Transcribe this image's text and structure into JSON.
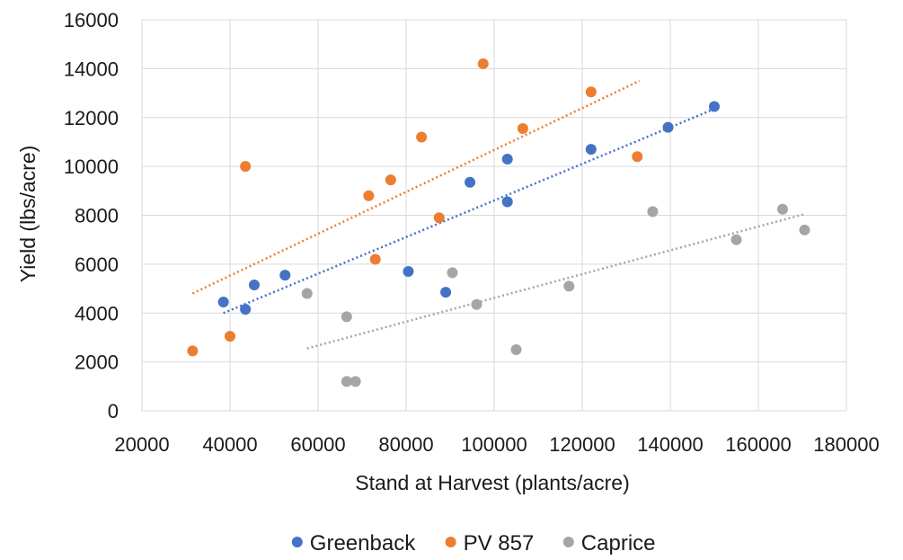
{
  "chart_data": {
    "type": "scatter",
    "title": "",
    "xlabel": "Stand at Harvest (plants/acre)",
    "ylabel": "Yield (lbs/acre)",
    "xlim": [
      20000,
      180000
    ],
    "ylim": [
      0,
      16000
    ],
    "x_ticks": [
      20000,
      40000,
      60000,
      80000,
      100000,
      120000,
      140000,
      160000,
      180000
    ],
    "y_ticks": [
      0,
      2000,
      4000,
      6000,
      8000,
      10000,
      12000,
      14000,
      16000
    ],
    "grid": true,
    "legend_position": "bottom",
    "series": [
      {
        "name": "Greenback",
        "color": "#4472C4",
        "points": [
          [
            38500,
            4450
          ],
          [
            43500,
            4150
          ],
          [
            45500,
            5150
          ],
          [
            52500,
            5550
          ],
          [
            80500,
            5700
          ],
          [
            89000,
            4850
          ],
          [
            94500,
            9350
          ],
          [
            103000,
            10300
          ],
          [
            103000,
            8550
          ],
          [
            122000,
            10700
          ],
          [
            139500,
            11600
          ],
          [
            150000,
            12450
          ]
        ],
        "trendline": [
          [
            38500,
            4000
          ],
          [
            150000,
            12350
          ]
        ]
      },
      {
        "name": "PV 857",
        "color": "#ED7D31",
        "points": [
          [
            31500,
            2450
          ],
          [
            40000,
            3050
          ],
          [
            43500,
            10000
          ],
          [
            71500,
            8800
          ],
          [
            73000,
            6200
          ],
          [
            76500,
            9450
          ],
          [
            83500,
            11200
          ],
          [
            87500,
            7900
          ],
          [
            97500,
            14200
          ],
          [
            106500,
            11550
          ],
          [
            122000,
            13050
          ],
          [
            132500,
            10400
          ]
        ],
        "trendline": [
          [
            31500,
            4800
          ],
          [
            133000,
            13500
          ]
        ]
      },
      {
        "name": "Caprice",
        "color": "#A5A5A5",
        "points": [
          [
            57500,
            4800
          ],
          [
            66500,
            3850
          ],
          [
            66500,
            1200
          ],
          [
            68500,
            1200
          ],
          [
            90500,
            5650
          ],
          [
            96000,
            4350
          ],
          [
            105000,
            2500
          ],
          [
            117000,
            5100
          ],
          [
            136000,
            8150
          ],
          [
            155000,
            7000
          ],
          [
            165500,
            8250
          ],
          [
            170500,
            7400
          ]
        ],
        "trendline": [
          [
            57500,
            2550
          ],
          [
            170500,
            8050
          ]
        ]
      }
    ]
  }
}
